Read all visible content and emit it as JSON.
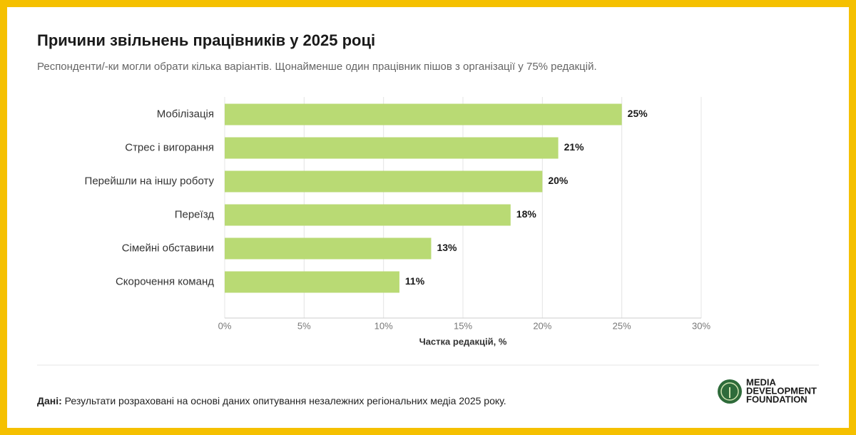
{
  "chart_data": {
    "type": "hbar",
    "title": "Причини звільнень працівників у 2025 році",
    "subtitle": "Респонденти/-ки могли обрати кілька варіантів. Щонайменше один працівник пішов з організації у 75% редакцій.",
    "categories": [
      "Мобілізація",
      "Стрес і вигорання",
      "Перейшли на іншу роботу",
      "Переїзд",
      "Сімейні обставини",
      "Скорочення команд"
    ],
    "values": [
      25,
      21,
      20,
      18,
      13,
      11
    ],
    "value_labels": [
      "25%",
      "21%",
      "20%",
      "18%",
      "13%",
      "11%"
    ],
    "color": "#b9da74",
    "xlim": [
      0,
      30
    ],
    "xticks": [
      {
        "value": 0,
        "label": "0%"
      },
      {
        "value": 5,
        "label": "5%"
      },
      {
        "value": 10,
        "label": "10%"
      },
      {
        "value": 15,
        "label": "15%"
      },
      {
        "value": 20,
        "label": "20%"
      },
      {
        "value": 25,
        "label": "25%"
      },
      {
        "value": 30,
        "label": "30%"
      }
    ],
    "xlabel": "Частка редакцій, %",
    "grid": true
  },
  "footer": {
    "label": "Дані:",
    "text": "Результати розраховані на основі даних опитування незалежних регіональних медіа 2025 року."
  },
  "logo": {
    "lines": [
      "MEDIA",
      "DEVELOPMENT",
      "FOUNDATION"
    ]
  }
}
